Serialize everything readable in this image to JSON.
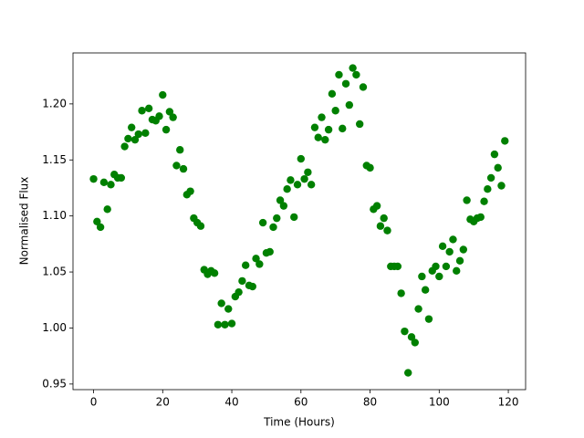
{
  "chart_data": {
    "type": "scatter",
    "x_label": "Time (Hours)",
    "y_label": "Normalised Flux",
    "color": "#008000",
    "xlim": [
      -5.95,
      125
    ],
    "ylim": [
      0.945,
      1.2455
    ],
    "xticks": [
      0,
      20,
      40,
      60,
      80,
      100,
      120
    ],
    "yticks": [
      0.95,
      {
        "value": 1.0,
        "label": "1.00"
      },
      1.05,
      {
        "value": 1.1,
        "label": "1.10"
      },
      1.15,
      {
        "value": 1.2,
        "label": "1.20"
      }
    ],
    "grid": false,
    "x": [
      0,
      1,
      2,
      3,
      4,
      5,
      6,
      7,
      8,
      9,
      10,
      11,
      12,
      13,
      14,
      15,
      16,
      17,
      18,
      19,
      20,
      21,
      22,
      23,
      24,
      25,
      26,
      27,
      28,
      29,
      30,
      31,
      32,
      33,
      34,
      35,
      36,
      37,
      38,
      39,
      40,
      41,
      42,
      43,
      44,
      45,
      46,
      47,
      48,
      49,
      50,
      51,
      52,
      53,
      54,
      55,
      56,
      57,
      58,
      59,
      60,
      61,
      62,
      63,
      64,
      65,
      66,
      67,
      68,
      69,
      70,
      71,
      72,
      73,
      74,
      75,
      76,
      77,
      78,
      79,
      80,
      81,
      82,
      83,
      84,
      85,
      86,
      87,
      88,
      89,
      90,
      91,
      92,
      93,
      94,
      95,
      96,
      97,
      98,
      99,
      100,
      101,
      102,
      103,
      104,
      105,
      106,
      107,
      108,
      109,
      110,
      111,
      112,
      113,
      114,
      115,
      116,
      117,
      118,
      119
    ],
    "values": [
      1.133,
      1.095,
      1.09,
      1.13,
      1.106,
      1.128,
      1.137,
      1.134,
      1.134,
      1.162,
      1.169,
      1.179,
      1.168,
      1.173,
      1.194,
      1.174,
      1.196,
      1.186,
      1.185,
      1.189,
      1.208,
      1.177,
      1.193,
      1.188,
      1.145,
      1.159,
      1.142,
      1.119,
      1.122,
      1.098,
      1.094,
      1.091,
      1.052,
      1.048,
      1.051,
      1.049,
      1.003,
      1.022,
      1.003,
      1.017,
      1.004,
      1.028,
      1.032,
      1.042,
      1.056,
      1.038,
      1.037,
      1.062,
      1.057,
      1.094,
      1.067,
      1.068,
      1.09,
      1.098,
      1.114,
      1.109,
      1.124,
      1.132,
      1.099,
      1.128,
      1.151,
      1.133,
      1.139,
      1.128,
      1.179,
      1.17,
      1.188,
      1.168,
      1.177,
      1.209,
      1.194,
      1.226,
      1.178,
      1.218,
      1.199,
      1.232,
      1.226,
      1.182,
      1.215,
      1.145,
      1.143,
      1.106,
      1.109,
      1.091,
      1.098,
      1.087,
      1.055,
      1.055,
      1.055,
      1.031,
      0.997,
      0.96,
      0.992,
      0.987,
      1.017,
      1.046,
      1.034,
      1.008,
      1.051,
      1.055,
      1.046,
      1.073,
      1.055,
      1.068,
      1.079,
      1.051,
      1.06,
      1.07,
      1.114,
      1.097,
      1.095,
      1.098,
      1.099,
      1.113,
      1.124,
      1.134,
      1.155,
      1.143,
      1.127,
      1.167
    ]
  }
}
